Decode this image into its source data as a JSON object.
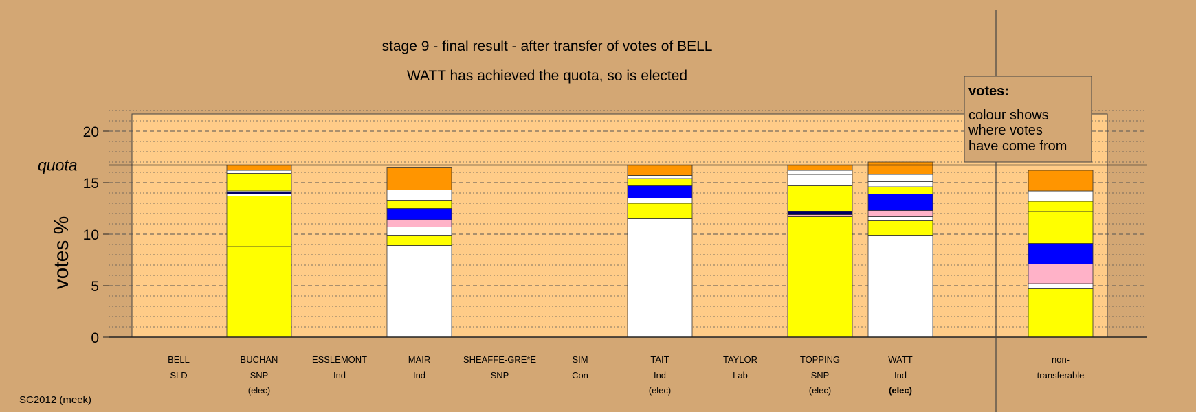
{
  "chart_data": {
    "type": "bar",
    "stacked": true,
    "title": "stage 9 - final result - after transfer of votes of BELL",
    "subtitle": "WATT has achieved the quota, so is elected",
    "ylabel": "votes %",
    "ylim": [
      0,
      22
    ],
    "yticks": [
      0,
      5,
      10,
      15,
      20
    ],
    "quota": 16.7,
    "quota_label": "quota",
    "grid": true,
    "legend_position": "top-right",
    "colors": {
      "background": "#d3a774",
      "plot_panel": "#ffcc88",
      "white": "#ffffff",
      "yellow": "#ffff00",
      "navy": "#000066",
      "pink": "#ffb2c8",
      "blue": "#0000ff",
      "orange": "#ff9500"
    },
    "candidates": [
      {
        "name": "BELL",
        "party": "SLD",
        "status": "",
        "segments": []
      },
      {
        "name": "BUCHAN",
        "party": "SNP",
        "status": "(elec)",
        "segments": [
          {
            "value": 8.8,
            "color": "#ffff00"
          },
          {
            "value": 4.9,
            "color": "#ffff00"
          },
          {
            "value": 0.2,
            "color": "#ffffff"
          },
          {
            "value": 0.2,
            "color": "#000066"
          },
          {
            "value": 0.1,
            "color": "#ffffff"
          },
          {
            "value": 1.7,
            "color": "#ffff00"
          },
          {
            "value": 0.3,
            "color": "#ffffff"
          },
          {
            "value": 0.5,
            "color": "#ff9500"
          }
        ]
      },
      {
        "name": "ESSLEMONT",
        "party": "Ind",
        "status": "",
        "segments": []
      },
      {
        "name": "MAIR",
        "party": "Ind",
        "status": "",
        "segments": [
          {
            "value": 8.9,
            "color": "#ffffff"
          },
          {
            "value": 1.0,
            "color": "#ffff00"
          },
          {
            "value": 0.8,
            "color": "#ffffff"
          },
          {
            "value": 0.7,
            "color": "#ffb2c8"
          },
          {
            "value": 1.1,
            "color": "#0000ff"
          },
          {
            "value": 0.8,
            "color": "#ffff00"
          },
          {
            "value": 0.4,
            "color": "#ffffff"
          },
          {
            "value": 0.6,
            "color": "#ffffff"
          },
          {
            "value": 2.2,
            "color": "#ff9500"
          }
        ]
      },
      {
        "name": "SHEAFFE-GRE*E",
        "party": "SNP",
        "status": "",
        "segments": []
      },
      {
        "name": "SIM",
        "party": "Con",
        "status": "",
        "segments": []
      },
      {
        "name": "TAIT",
        "party": "Ind",
        "status": "(elec)",
        "segments": [
          {
            "value": 11.5,
            "color": "#ffffff"
          },
          {
            "value": 1.5,
            "color": "#ffff00"
          },
          {
            "value": 0.5,
            "color": "#ffffff"
          },
          {
            "value": 1.2,
            "color": "#0000ff"
          },
          {
            "value": 0.7,
            "color": "#ffff00"
          },
          {
            "value": 0.3,
            "color": "#ffffff"
          },
          {
            "value": 1.0,
            "color": "#ff9500"
          }
        ]
      },
      {
        "name": "TAYLOR",
        "party": "Lab",
        "status": "",
        "segments": []
      },
      {
        "name": "TOPPING",
        "party": "SNP",
        "status": "(elec)",
        "segments": [
          {
            "value": 11.7,
            "color": "#ffff00"
          },
          {
            "value": 0.2,
            "color": "#ffb2c8"
          },
          {
            "value": 0.3,
            "color": "#000066"
          },
          {
            "value": 2.5,
            "color": "#ffff00"
          },
          {
            "value": 1.1,
            "color": "#ffffff"
          },
          {
            "value": 0.4,
            "color": "#ffffff"
          },
          {
            "value": 0.5,
            "color": "#ff9500"
          }
        ]
      },
      {
        "name": "WATT",
        "party": "Ind",
        "status": "(elec)",
        "status_bold": true,
        "segments": [
          {
            "value": 9.9,
            "color": "#ffffff"
          },
          {
            "value": 1.4,
            "color": "#ffff00"
          },
          {
            "value": 0.4,
            "color": "#ffffff"
          },
          {
            "value": 0.6,
            "color": "#ffb2c8"
          },
          {
            "value": 1.6,
            "color": "#0000ff"
          },
          {
            "value": 0.7,
            "color": "#ffff00"
          },
          {
            "value": 0.5,
            "color": "#ffffff"
          },
          {
            "value": 0.7,
            "color": "#ffffff"
          },
          {
            "value": 1.2,
            "color": "#ff9500"
          }
        ]
      },
      {
        "name": "non-",
        "party": "transferable",
        "status": "",
        "segments": [
          {
            "value": 4.7,
            "color": "#ffff00"
          },
          {
            "value": 0.5,
            "color": "#ffffff"
          },
          {
            "value": 1.9,
            "color": "#ffb2c8"
          },
          {
            "value": 2.0,
            "color": "#0000ff"
          },
          {
            "value": 3.1,
            "color": "#ffff00"
          },
          {
            "value": 1.0,
            "color": "#ffff00"
          },
          {
            "value": 1.0,
            "color": "#ffffff"
          },
          {
            "value": 2.0,
            "color": "#ff9500"
          }
        ]
      }
    ],
    "legend": {
      "title": "votes:",
      "lines": [
        "colour shows",
        "where votes",
        "have come from"
      ]
    },
    "footer": "SC2012 (meek)"
  }
}
